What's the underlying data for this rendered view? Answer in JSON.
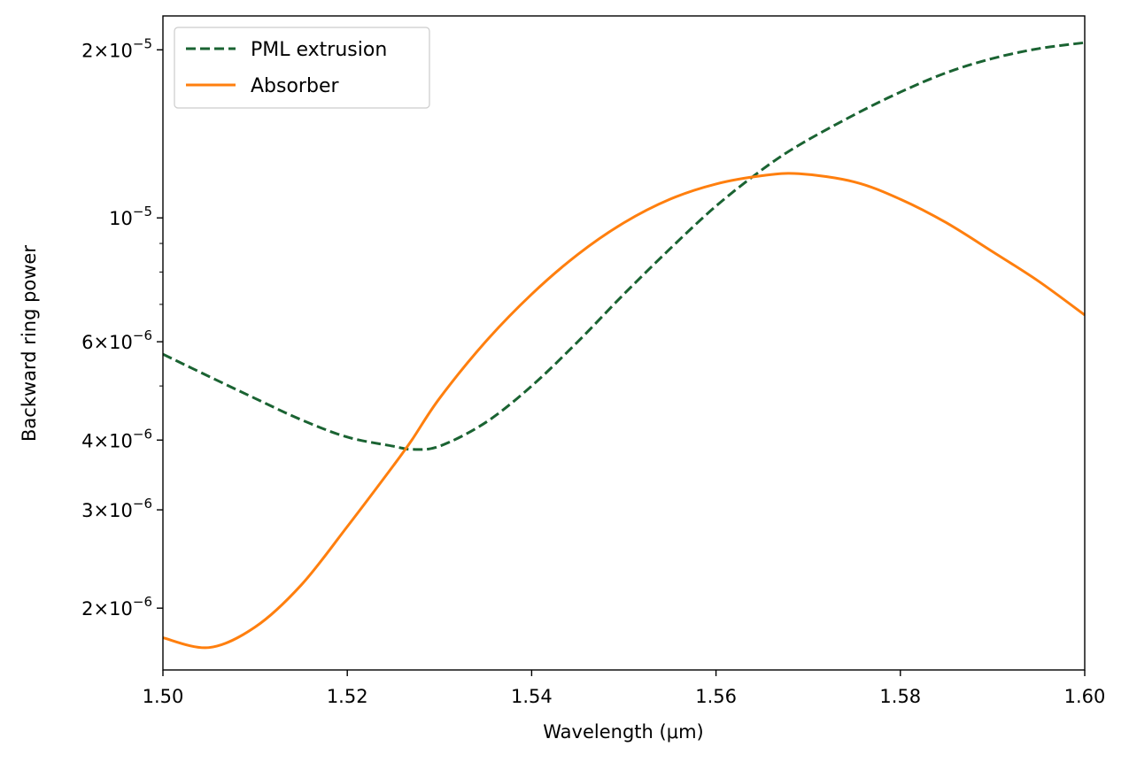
{
  "chart_data": {
    "type": "line",
    "title": "",
    "xlabel": "Wavelength (μm)",
    "ylabel": "Backward ring power",
    "xlim": [
      1.5,
      1.6
    ],
    "ylim": [
      1.55e-06,
      2.3e-05
    ],
    "yscale": "log",
    "grid": false,
    "legend_position": "top-left",
    "x_ticks": [
      {
        "value": 1.5,
        "label": "1.50"
      },
      {
        "value": 1.52,
        "label": "1.52"
      },
      {
        "value": 1.54,
        "label": "1.54"
      },
      {
        "value": 1.56,
        "label": "1.56"
      },
      {
        "value": 1.58,
        "label": "1.58"
      },
      {
        "value": 1.6,
        "label": "1.60"
      }
    ],
    "y_ticks": [
      {
        "value": 2e-06,
        "mant": "2",
        "exp": "−6"
      },
      {
        "value": 3e-06,
        "mant": "3",
        "exp": "−6"
      },
      {
        "value": 4e-06,
        "mant": "4",
        "exp": "−6"
      },
      {
        "value": 6e-06,
        "mant": "6",
        "exp": "−6"
      },
      {
        "value": 1e-05,
        "mant": "",
        "exp": "−5"
      },
      {
        "value": 2e-05,
        "mant": "2",
        "exp": "−5"
      }
    ],
    "y_minor_ticks": [
      5e-06,
      7e-06,
      8e-06,
      9e-06
    ],
    "x": [
      1.5,
      1.505,
      1.51,
      1.515,
      1.52,
      1.525,
      1.527,
      1.53,
      1.535,
      1.54,
      1.545,
      1.55,
      1.555,
      1.56,
      1.565,
      1.569,
      1.575,
      1.58,
      1.585,
      1.59,
      1.595,
      1.6
    ],
    "series": [
      {
        "name": "PML extrusion",
        "color": "#1a6332",
        "dash": "dashed",
        "values": [
          5.7e-06,
          5.2e-06,
          4.75e-06,
          4.35e-06,
          4.05e-06,
          3.9e-06,
          3.85e-06,
          3.9e-06,
          4.3e-06,
          5e-06,
          6e-06,
          7.3e-06,
          8.8e-06,
          1.05e-05,
          1.22e-05,
          1.35e-05,
          1.53e-05,
          1.68e-05,
          1.82e-05,
          1.93e-05,
          2.01e-05,
          2.06e-05
        ]
      },
      {
        "name": "Absorber",
        "color": "#ff7f0e",
        "dash": "solid",
        "values": [
          1.77e-06,
          1.7e-06,
          1.85e-06,
          2.2e-06,
          2.8e-06,
          3.6e-06,
          4e-06,
          4.75e-06,
          6e-06,
          7.3e-06,
          8.6e-06,
          9.8e-06,
          1.08e-05,
          1.15e-05,
          1.19e-05,
          1.2e-05,
          1.16e-05,
          1.08e-05,
          9.8e-06,
          8.7e-06,
          7.7e-06,
          6.7e-06
        ]
      }
    ]
  }
}
